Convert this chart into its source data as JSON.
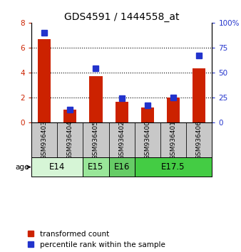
{
  "title": "GDS4591 / 1444558_at",
  "samples": [
    "GSM936403",
    "GSM936404",
    "GSM936405",
    "GSM936402",
    "GSM936400",
    "GSM936401",
    "GSM936406"
  ],
  "red_values": [
    6.7,
    1.0,
    3.7,
    1.65,
    1.2,
    2.0,
    4.35
  ],
  "blue_values": [
    90,
    13,
    54,
    24,
    17,
    25,
    67
  ],
  "age_groups": [
    {
      "label": "E14",
      "start": 0,
      "end": 2,
      "color": "#d6f5d6"
    },
    {
      "label": "E15",
      "start": 2,
      "end": 3,
      "color": "#99e699"
    },
    {
      "label": "E16",
      "start": 3,
      "end": 4,
      "color": "#66cc66"
    },
    {
      "label": "E17.5",
      "start": 4,
      "end": 7,
      "color": "#44cc44"
    }
  ],
  "ylim_left": [
    0,
    8
  ],
  "ylim_right": [
    0,
    100
  ],
  "yticks_left": [
    0,
    2,
    4,
    6,
    8
  ],
  "yticks_right": [
    0,
    25,
    50,
    75,
    100
  ],
  "ytick_labels_right": [
    "0",
    "25",
    "50",
    "75",
    "100%"
  ],
  "grid_yticks": [
    2,
    4,
    6
  ],
  "red_color": "#cc2200",
  "blue_color": "#2233cc",
  "bar_width": 0.5,
  "sample_bg_color": "#c8c8c8",
  "title_fontsize": 10,
  "tick_fontsize": 7.5,
  "legend_fontsize": 7.5,
  "age_label_fontsize": 8.5,
  "sample_fontsize": 6.5
}
